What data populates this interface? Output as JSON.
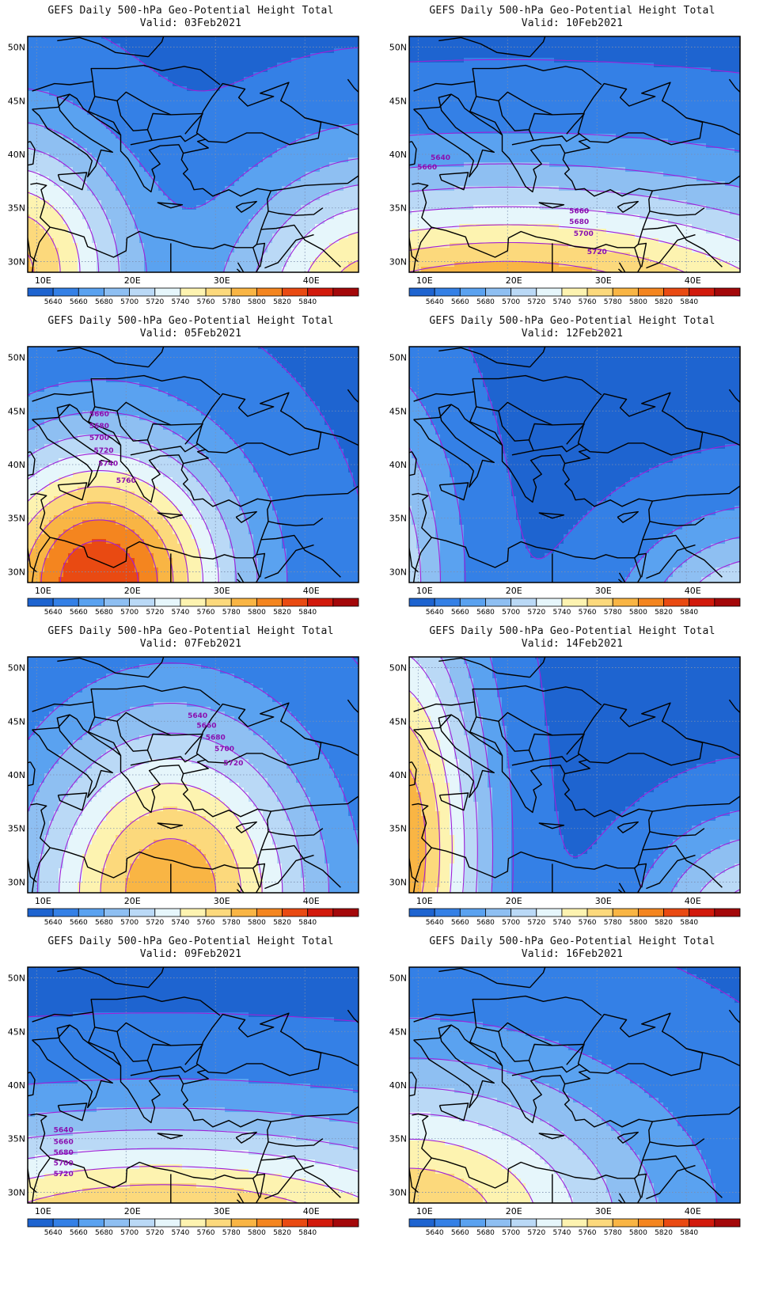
{
  "map_data": {
    "title_line": "GEFS Daily 500-hPa Geo-Potential Height Total",
    "lon_ticks": [
      "10E",
      "20E",
      "30E",
      "40E"
    ],
    "lat_ticks": [
      "50N",
      "45N",
      "40N",
      "35N",
      "30N"
    ],
    "extent": {
      "lon": [
        9,
        46
      ],
      "lat": [
        29,
        51
      ]
    },
    "levels": [
      5640,
      5660,
      5680,
      5700,
      5720,
      5740,
      5760,
      5780,
      5800,
      5820,
      5840
    ],
    "colors": [
      "#1e64d0",
      "#3480e6",
      "#5aa2f0",
      "#8ebff2",
      "#bad9f6",
      "#e6f6fb",
      "#fdf3b0",
      "#fcd97c",
      "#f9b544",
      "#f4851f",
      "#e94a12",
      "#d21a0c",
      "#a4080a"
    ],
    "contour_color": "#a020d8",
    "panels": [
      {
        "valid": "Valid: 03Feb2021",
        "field": {
          "base": 5636,
          "centers": [
            {
              "lon": 7,
              "lat": 29,
              "amp": 150,
              "sx": 9,
              "sy": 9
            },
            {
              "lon": 48,
              "lat": 26,
              "amp": 140,
              "sx": 11,
              "sy": 9
            }
          ]
        },
        "labels": []
      },
      {
        "valid": "Valid: 10Feb2021",
        "field": {
          "base": 5636,
          "centers": [
            {
              "lon": 20,
              "lat": 24,
              "amp": 180,
              "sx": 30,
              "sy": 9
            }
          ]
        },
        "labels": [
          {
            "text": "5640",
            "lon": 12.5,
            "lat": 39.5
          },
          {
            "text": "5660",
            "lon": 11,
            "lat": 38.6
          },
          {
            "text": "5660",
            "lon": 28,
            "lat": 34.5
          },
          {
            "text": "5680",
            "lon": 28,
            "lat": 33.5
          },
          {
            "text": "5700",
            "lon": 28.5,
            "lat": 32.4
          },
          {
            "text": "5720",
            "lon": 30,
            "lat": 30.7
          }
        ]
      },
      {
        "valid": "Valid: 05Feb2021",
        "field": {
          "base": 5638,
          "centers": [
            {
              "lon": 17,
              "lat": 29,
              "amp": 200,
              "sx": 10,
              "sy": 9
            }
          ]
        },
        "labels": [
          {
            "text": "5660",
            "lon": 17,
            "lat": 44.5
          },
          {
            "text": "5680",
            "lon": 17,
            "lat": 43.4
          },
          {
            "text": "5700",
            "lon": 17,
            "lat": 42.3
          },
          {
            "text": "5720",
            "lon": 17.5,
            "lat": 41.1
          },
          {
            "text": "5740",
            "lon": 18,
            "lat": 39.9
          },
          {
            "text": "5760",
            "lon": 20,
            "lat": 38.3
          }
        ]
      },
      {
        "valid": "Valid: 12Feb2021",
        "field": {
          "base": 5636,
          "centers": [
            {
              "lon": 3,
              "lat": 29,
              "amp": 110,
              "sx": 7,
              "sy": 12
            },
            {
              "lon": 49,
              "lat": 24,
              "amp": 110,
              "sx": 10,
              "sy": 7
            }
          ]
        },
        "labels": []
      },
      {
        "valid": "Valid: 07Feb2021",
        "field": {
          "base": 5636,
          "centers": [
            {
              "lon": 25,
              "lat": 29,
              "amp": 160,
              "sx": 11,
              "sy": 11
            }
          ]
        },
        "labels": [
          {
            "text": "5640",
            "lon": 28,
            "lat": 45.3
          },
          {
            "text": "5660",
            "lon": 29,
            "lat": 44.4
          },
          {
            "text": "5680",
            "lon": 30,
            "lat": 43.3
          },
          {
            "text": "5700",
            "lon": 31,
            "lat": 42.2
          },
          {
            "text": "5720",
            "lon": 32,
            "lat": 40.9
          }
        ]
      },
      {
        "valid": "Valid: 14Feb2021",
        "field": {
          "base": 5634,
          "centers": [
            {
              "lon": 7,
              "lat": 33,
              "amp": 170,
              "sx": 7,
              "sy": 16
            },
            {
              "lon": 49,
              "lat": 25,
              "amp": 110,
              "sx": 9,
              "sy": 7
            }
          ]
        },
        "labels": []
      },
      {
        "valid": "Valid: 09Feb2021",
        "field": {
          "base": 5636,
          "centers": [
            {
              "lon": 24,
              "lat": 25,
              "amp": 160,
              "sx": 30,
              "sy": 8
            }
          ]
        },
        "labels": [
          {
            "text": "5640",
            "lon": 13,
            "lat": 35.6
          },
          {
            "text": "5660",
            "lon": 13,
            "lat": 34.5
          },
          {
            "text": "5680",
            "lon": 13,
            "lat": 33.5
          },
          {
            "text": "5700",
            "lon": 13,
            "lat": 32.5
          },
          {
            "text": "5720",
            "lon": 13,
            "lat": 31.5
          }
        ]
      },
      {
        "valid": "Valid: 16Feb2021",
        "field": {
          "base": 5638,
          "centers": [
            {
              "lon": 9,
              "lat": 27,
              "amp": 140,
              "sx": 18,
              "sy": 10
            }
          ]
        },
        "labels": []
      }
    ]
  }
}
